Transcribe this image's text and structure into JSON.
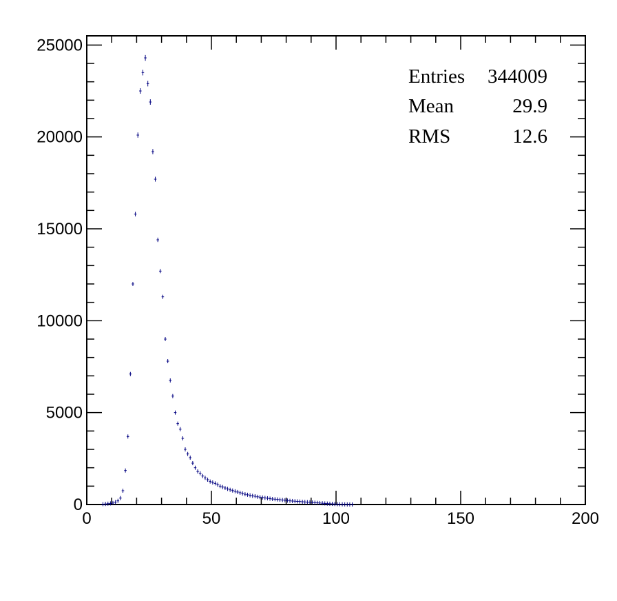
{
  "chart_data": {
    "type": "scatter",
    "title": "",
    "xlabel": "",
    "ylabel": "",
    "xlim": [
      0,
      200
    ],
    "ylim": [
      0,
      25500
    ],
    "x_ticks": [
      0,
      50,
      100,
      150,
      200
    ],
    "y_ticks": [
      0,
      5000,
      10000,
      15000,
      20000,
      25000
    ],
    "x_tick_labels": [
      "0",
      "50",
      "100",
      "150",
      "200"
    ],
    "y_tick_labels": [
      "0",
      "5000",
      "10000",
      "15000",
      "20000",
      "25000"
    ],
    "grid": false,
    "marker_color": "#000080",
    "stats_box": {
      "entries_label": "Entries",
      "entries_value": "344009",
      "mean_label": "Mean",
      "mean_value": "29.9",
      "rms_label": "RMS",
      "rms_value": "12.6"
    },
    "series": [
      {
        "x": [
          6.5,
          7.5,
          8.5,
          9.5,
          10.5,
          11.5,
          12.5,
          13.5,
          14.5,
          15.5,
          16.5,
          17.5,
          18.5,
          19.5,
          20.5,
          21.5,
          22.5,
          23.5,
          24.5,
          25.5,
          26.5,
          27.5,
          28.5,
          29.5,
          30.5,
          31.5,
          32.5,
          33.5,
          34.5,
          35.5,
          36.5,
          37.5,
          38.5,
          39.5,
          40.5,
          41.5,
          42.5,
          43.5,
          44.5,
          45.5,
          46.5,
          47.5,
          48.5,
          49.5,
          50.5,
          51.5,
          52.5,
          53.5,
          54.5,
          55.5,
          56.5,
          57.5,
          58.5,
          59.5,
          60.5,
          61.5,
          62.5,
          63.5,
          64.5,
          65.5,
          66.5,
          67.5,
          68.5,
          69.5,
          70.5,
          71.5,
          72.5,
          73.5,
          74.5,
          75.5,
          76.5,
          77.5,
          78.5,
          79.5,
          80.5,
          81.5,
          82.5,
          83.5,
          84.5,
          85.5,
          86.5,
          87.5,
          88.5,
          89.5,
          90.5,
          91.5,
          92.5,
          93.5,
          94.5,
          95.5,
          96.5,
          97.5,
          98.5,
          99.5,
          100.5,
          101.5,
          102.5,
          103.5,
          104.5,
          105.5,
          106.5
        ],
        "y": [
          20,
          30,
          45,
          60,
          80,
          130,
          200,
          350,
          750,
          1850,
          3700,
          7100,
          12000,
          15800,
          20100,
          22500,
          23500,
          24300,
          22900,
          21900,
          19200,
          17700,
          14400,
          12700,
          11300,
          9000,
          7800,
          6750,
          5900,
          5000,
          4400,
          4100,
          3600,
          3000,
          2750,
          2550,
          2250,
          2000,
          1800,
          1700,
          1550,
          1450,
          1350,
          1250,
          1200,
          1150,
          1080,
          1000,
          950,
          900,
          850,
          800,
          760,
          720,
          680,
          640,
          600,
          560,
          530,
          500,
          470,
          450,
          420,
          400,
          380,
          360,
          340,
          320,
          300,
          290,
          275,
          260,
          245,
          230,
          215,
          200,
          190,
          180,
          170,
          160,
          150,
          140,
          130,
          120,
          110,
          100,
          90,
          80,
          70,
          60,
          50,
          42,
          35,
          28,
          22,
          17,
          12,
          8,
          5,
          3,
          2
        ]
      }
    ]
  }
}
